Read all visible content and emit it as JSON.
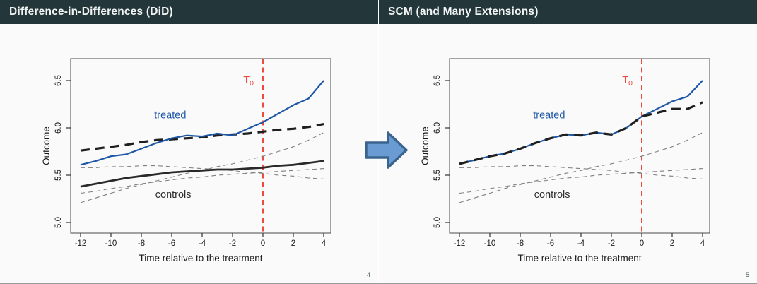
{
  "slides": [
    {
      "title": "Difference-in-Differences (DiD)",
      "page_number": "4"
    },
    {
      "title": "SCM (and Many Extensions)",
      "page_number": "5"
    }
  ],
  "arrow_icon": {
    "name": "right-arrow",
    "fill": "#6a9bd3",
    "stroke": "#3a648e"
  },
  "colors": {
    "title_bar_bg": "#23373b",
    "title_text": "#f2f3f3",
    "slide_bg": "#fafafa",
    "treated_blue": "#1d57a5",
    "treatment_red": "#ee4b40",
    "control_gray": "#7f7f7f",
    "line_black": "#1f1f1f",
    "axis_text": "#1a1a1a"
  },
  "chart_data": [
    {
      "id": "did",
      "type": "line",
      "title": "Difference-in-Differences (DiD)",
      "xlabel": "Time relative to the treatment",
      "ylabel": "Outcome",
      "xlim": [
        -12.7,
        4.7
      ],
      "ylim": [
        4.89,
        6.73
      ],
      "x_ticks": [
        -12,
        -10,
        -8,
        -6,
        -4,
        -2,
        0,
        2,
        4
      ],
      "y_ticks": [
        "5.0",
        "5.5",
        "6.0",
        "6.5"
      ],
      "grid": false,
      "treatment_time": 0,
      "x": [
        -12,
        -11,
        -10,
        -9,
        -8,
        -7,
        -6,
        -5,
        -4,
        -3,
        -2,
        -1,
        0,
        1,
        2,
        3,
        4
      ],
      "series": [
        {
          "name": "control-1",
          "role": "control",
          "values": [
            5.21,
            5.26,
            5.31,
            5.36,
            5.4,
            5.44,
            5.48,
            5.52,
            5.55,
            5.59,
            5.62,
            5.66,
            5.7,
            5.75,
            5.8,
            5.87,
            5.95
          ]
        },
        {
          "name": "control-2",
          "role": "control",
          "values": [
            5.58,
            5.58,
            5.59,
            5.59,
            5.6,
            5.6,
            5.59,
            5.58,
            5.57,
            5.56,
            5.55,
            5.53,
            5.52,
            5.5,
            5.49,
            5.47,
            5.46
          ]
        },
        {
          "name": "control-3",
          "role": "control",
          "values": [
            5.31,
            5.33,
            5.36,
            5.38,
            5.41,
            5.43,
            5.45,
            5.47,
            5.48,
            5.5,
            5.51,
            5.52,
            5.53,
            5.54,
            5.55,
            5.56,
            5.57
          ]
        },
        {
          "name": "controls-average",
          "role": "controls_avg",
          "values": [
            5.38,
            5.41,
            5.44,
            5.47,
            5.49,
            5.51,
            5.53,
            5.54,
            5.55,
            5.56,
            5.56,
            5.57,
            5.58,
            5.6,
            5.61,
            5.63,
            5.65
          ]
        },
        {
          "name": "did-counterfactual",
          "role": "counterfactual",
          "values": [
            5.76,
            5.78,
            5.8,
            5.82,
            5.85,
            5.87,
            5.88,
            5.89,
            5.9,
            5.92,
            5.93,
            5.94,
            5.96,
            5.98,
            5.99,
            6.01,
            6.04
          ]
        },
        {
          "name": "treated",
          "role": "treated",
          "values": [
            5.61,
            5.65,
            5.7,
            5.72,
            5.78,
            5.84,
            5.89,
            5.92,
            5.91,
            5.94,
            5.92,
            5.99,
            6.06,
            6.15,
            6.24,
            6.31,
            6.5
          ]
        }
      ],
      "labels": {
        "treated": {
          "text": "treated",
          "x": -6.1,
          "y": 6.1,
          "color": "#1d57a5"
        },
        "controls": {
          "text": "controls",
          "x": -5.9,
          "y": 5.26,
          "color": "#2e2e2e"
        },
        "t0": {
          "text": "T",
          "sub": "0",
          "x": -0.95,
          "y": 6.47,
          "color": "#ee4b40"
        }
      }
    },
    {
      "id": "scm",
      "type": "line",
      "title": "SCM (and Many Extensions)",
      "xlabel": "Time relative to the treatment",
      "ylabel": "Outcome",
      "xlim": [
        -12.7,
        4.7
      ],
      "ylim": [
        4.89,
        6.73
      ],
      "x_ticks": [
        -12,
        -10,
        -8,
        -6,
        -4,
        -2,
        0,
        2,
        4
      ],
      "y_ticks": [
        "5.0",
        "5.5",
        "6.0",
        "6.5"
      ],
      "grid": false,
      "treatment_time": 0,
      "x": [
        -12,
        -11,
        -10,
        -9,
        -8,
        -7,
        -6,
        -5,
        -4,
        -3,
        -2,
        -1,
        0,
        1,
        2,
        3,
        4
      ],
      "series": [
        {
          "name": "control-1",
          "role": "control",
          "values": [
            5.21,
            5.26,
            5.31,
            5.36,
            5.4,
            5.44,
            5.48,
            5.52,
            5.55,
            5.59,
            5.62,
            5.66,
            5.7,
            5.75,
            5.8,
            5.87,
            5.95
          ]
        },
        {
          "name": "control-2",
          "role": "control",
          "values": [
            5.58,
            5.58,
            5.59,
            5.59,
            5.6,
            5.6,
            5.59,
            5.58,
            5.57,
            5.56,
            5.55,
            5.53,
            5.52,
            5.5,
            5.49,
            5.47,
            5.46
          ]
        },
        {
          "name": "control-3",
          "role": "control",
          "values": [
            5.31,
            5.33,
            5.36,
            5.38,
            5.41,
            5.43,
            5.45,
            5.47,
            5.48,
            5.5,
            5.51,
            5.52,
            5.53,
            5.54,
            5.55,
            5.56,
            5.57
          ]
        },
        {
          "name": "treated",
          "role": "treated",
          "values": [
            5.62,
            5.66,
            5.7,
            5.73,
            5.78,
            5.84,
            5.89,
            5.93,
            5.92,
            5.95,
            5.93,
            6.0,
            6.12,
            6.2,
            6.28,
            6.33,
            6.5
          ]
        },
        {
          "name": "synthetic-control",
          "role": "counterfactual",
          "values": [
            5.62,
            5.66,
            5.7,
            5.73,
            5.78,
            5.84,
            5.89,
            5.93,
            5.92,
            5.95,
            5.93,
            6.0,
            6.12,
            6.16,
            6.2,
            6.2,
            6.27
          ]
        }
      ],
      "labels": {
        "treated": {
          "text": "treated",
          "x": -6.1,
          "y": 6.1,
          "color": "#1d57a5"
        },
        "controls": {
          "text": "controls",
          "x": -5.9,
          "y": 5.26,
          "color": "#2e2e2e"
        },
        "t0": {
          "text": "T",
          "sub": "0",
          "x": -0.95,
          "y": 6.47,
          "color": "#ee4b40"
        }
      }
    }
  ]
}
